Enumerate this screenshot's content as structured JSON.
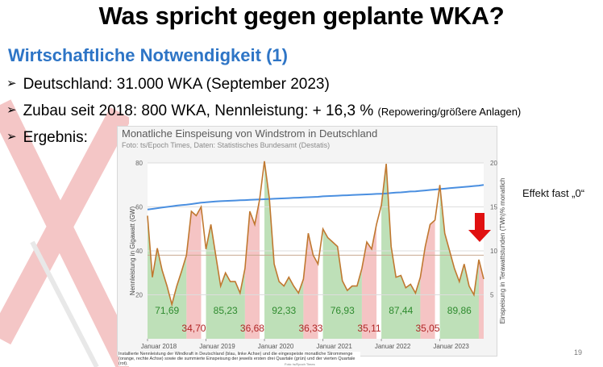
{
  "slide": {
    "title": "Was spricht gegen geplante WKA?",
    "subtitle": "Wirtschaftliche Notwendigkeit (1)",
    "bullets": [
      {
        "text": "Deutschland: 31.000 WKA (September 2023)",
        "note": ""
      },
      {
        "text": "Zubau seit 2018: 800 WKA, Nennleistung: + 16,3 % ",
        "note": "(Repowering/größere Anlagen)"
      },
      {
        "text": "Ergebnis:",
        "note": ""
      }
    ],
    "side_note": "Effekt fast „0“",
    "page_number": "19",
    "caption": "Installierte Nennleistung der Windkraft in Deutschland (blau, linke Achse) und die eingespeiste monatliche Strommenge (orange, rechte Achse) sowie die summierte Einspeisung der jeweils ersten drei Quartale (grün) und der vierten Quartale (rot).",
    "caption_credit": "Foto: ts/Epoch Times",
    "colors": {
      "subtitle": "#2e75c6",
      "capacity_line": "#4a8fe0",
      "feed_in_line": "#c07830",
      "q1_q3_fill": "#a8d5a0",
      "q4_fill": "#f2b0b0",
      "q1_q3_label": "#2e8b2e",
      "q4_label": "#b02525",
      "arrow": "#e01010"
    }
  },
  "chart_data": {
    "type": "line",
    "title": "Monatliche Einspeisung von Windstrom in Deutschland",
    "source": "Foto: ts/Epoch Times, Daten: Statistisches Bundesamt (Destatis)",
    "ylabel_left": "Nennleistung in Gigawatt (GW)",
    "ylabel_right": "Einspeisung in Terawattstunden (TWh)",
    "ylabel_right_suffix": "% monatlich",
    "ylim_left": [
      0,
      80
    ],
    "ylim_right": [
      0,
      20
    ],
    "left_ticks": [
      "20",
      "40",
      "60",
      "80"
    ],
    "right_ticks": [
      "5",
      "10",
      "15",
      "20"
    ],
    "x_ticks": [
      "Januar 2018",
      "Januar 2019",
      "Januar 2020",
      "Januar 2021",
      "Januar 2022",
      "Januar 2023"
    ],
    "grid": true,
    "series": [
      {
        "axis": "left",
        "x_start": "2018-01",
        "values": [
          58.8,
          59.1,
          59.4,
          59.7,
          60.0,
          60.3,
          60.6,
          60.8,
          61.0,
          61.3,
          61.6,
          61.9,
          62.1,
          62.3,
          62.5,
          62.6,
          62.7,
          62.8,
          62.9,
          63.0,
          63.1,
          63.2,
          63.3,
          63.4,
          63.5,
          63.6,
          63.7,
          63.8,
          63.9,
          64.0,
          64.1,
          64.2,
          64.3,
          64.4,
          64.5,
          64.6,
          64.8,
          64.9,
          65.0,
          65.1,
          65.2,
          65.3,
          65.4,
          65.5,
          65.6,
          65.7,
          65.8,
          65.9,
          66.0,
          66.1,
          66.3,
          66.5,
          66.6,
          66.8,
          67.0,
          67.1,
          67.3,
          67.5,
          67.7,
          67.9,
          68.1,
          68.3,
          68.5,
          68.7,
          68.9,
          69.1,
          69.3,
          69.5,
          69.7,
          70.0
        ]
      },
      {
        "axis": "right",
        "x_start": "2018-01",
        "values": [
          14.0,
          7.0,
          10.3,
          7.8,
          6.0,
          3.9,
          6.0,
          7.7,
          9.5,
          14.5,
          14.0,
          15.0,
          10.2,
          13.0,
          9.5,
          6.0,
          7.5,
          6.5,
          6.5,
          5.2,
          8.0,
          14.5,
          13.0,
          15.8,
          20.2,
          16.0,
          8.5,
          6.5,
          6.0,
          7.0,
          6.0,
          5.2,
          6.8,
          12.0,
          9.5,
          8.5,
          12.5,
          11.5,
          11.0,
          10.5,
          6.6,
          5.5,
          6.0,
          6.0,
          8.0,
          11.0,
          10.2,
          13.0,
          15.2,
          19.9,
          10.5,
          7.0,
          7.2,
          5.8,
          6.2,
          5.2,
          7.0,
          10.5,
          13.0,
          13.5,
          17.5,
          12.0,
          10.0,
          8.0,
          6.5,
          8.5,
          6.0,
          5.0,
          9.0,
          6.8
        ]
      }
    ],
    "quarter_sums": [
      {
        "label": "71,69",
        "kind": "Q1-Q3"
      },
      {
        "label": "34,70",
        "kind": "Q4"
      },
      {
        "label": "85,23",
        "kind": "Q1-Q3"
      },
      {
        "label": "36,68",
        "kind": "Q4"
      },
      {
        "label": "92,33",
        "kind": "Q1-Q3"
      },
      {
        "label": "36,33",
        "kind": "Q4"
      },
      {
        "label": "76,93",
        "kind": "Q1-Q3"
      },
      {
        "label": "35,11",
        "kind": "Q4"
      },
      {
        "label": "87,44",
        "kind": "Q1-Q3"
      },
      {
        "label": "35,05",
        "kind": "Q4"
      },
      {
        "label": "89,86",
        "kind": "Q1-Q3"
      }
    ]
  }
}
